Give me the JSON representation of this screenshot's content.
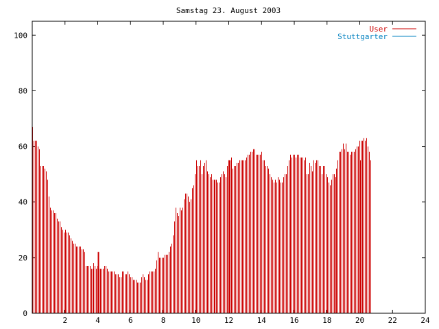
{
  "chart_data": {
    "type": "bar",
    "title": "Samstag 23. August 2003",
    "xlabel": "",
    "ylabel": "",
    "xlim": [
      0,
      24
    ],
    "ylim": [
      0,
      105
    ],
    "xticks": [
      2,
      4,
      6,
      8,
      10,
      12,
      14,
      16,
      18,
      20,
      22,
      24
    ],
    "yticks": [
      0,
      20,
      40,
      60,
      80,
      100
    ],
    "legend_position": "top-right",
    "series": [
      {
        "name": "User",
        "color": "#cc0000",
        "x_start": 0,
        "x_step": 0.0833,
        "values": [
          67,
          62,
          62,
          62,
          60,
          59,
          53,
          53,
          53,
          52,
          51,
          48,
          42,
          38,
          37,
          37,
          36,
          36,
          34,
          33,
          33,
          31,
          30,
          29,
          30,
          29,
          29,
          28,
          27,
          26,
          25,
          25,
          24,
          24,
          24,
          24,
          23,
          23,
          22,
          17,
          17,
          17,
          17,
          16,
          16,
          18,
          17,
          16,
          17,
          16,
          16,
          16,
          16,
          17,
          17,
          16,
          15,
          15,
          15,
          15,
          15,
          14,
          14,
          14,
          13,
          13,
          15,
          15,
          14,
          14,
          15,
          14,
          13,
          13,
          12,
          12,
          12,
          11,
          11,
          11,
          13,
          14,
          13,
          12,
          12,
          14,
          15,
          15,
          15,
          15,
          16,
          19,
          22,
          20,
          20,
          20,
          20,
          21,
          21,
          21,
          22,
          24,
          25,
          28,
          33,
          38,
          36,
          35,
          38,
          37,
          38,
          41,
          43,
          43,
          42,
          40,
          41,
          45,
          46,
          50,
          55,
          53,
          53,
          55,
          50,
          53,
          54,
          55,
          51,
          50,
          49,
          50,
          48,
          48,
          48,
          48,
          47,
          47,
          49,
          50,
          51,
          50,
          49,
          53,
          55,
          55,
          56,
          52,
          53,
          53,
          54,
          54,
          55,
          55,
          55,
          55,
          55,
          56,
          57,
          57,
          58,
          58,
          59,
          59,
          57,
          57,
          57,
          57,
          58,
          55,
          55,
          53,
          53,
          52,
          50,
          49,
          48,
          47,
          48,
          47,
          49,
          48,
          47,
          47,
          49,
          50,
          50,
          53,
          55,
          57,
          56,
          57,
          57,
          56,
          57,
          57,
          56,
          56,
          56,
          55,
          56,
          50,
          50,
          54,
          53,
          51,
          55,
          54,
          55,
          55,
          53,
          53,
          50,
          53,
          53,
          50,
          49,
          47,
          46,
          48,
          50,
          50,
          49,
          52,
          55,
          58,
          58,
          59,
          61,
          59,
          61,
          58,
          58,
          57,
          58,
          58,
          58,
          59,
          60,
          60,
          62,
          62,
          62,
          63,
          62,
          63,
          60,
          58,
          55
        ],
        "spikes": [
          {
            "x": 4.0,
            "value": 22
          },
          {
            "x": 12.0,
            "value": 55
          },
          {
            "x": 20.0,
            "value": 55
          }
        ]
      },
      {
        "name": "Stuttgarter",
        "color": "#0080c0",
        "values": []
      }
    ]
  }
}
